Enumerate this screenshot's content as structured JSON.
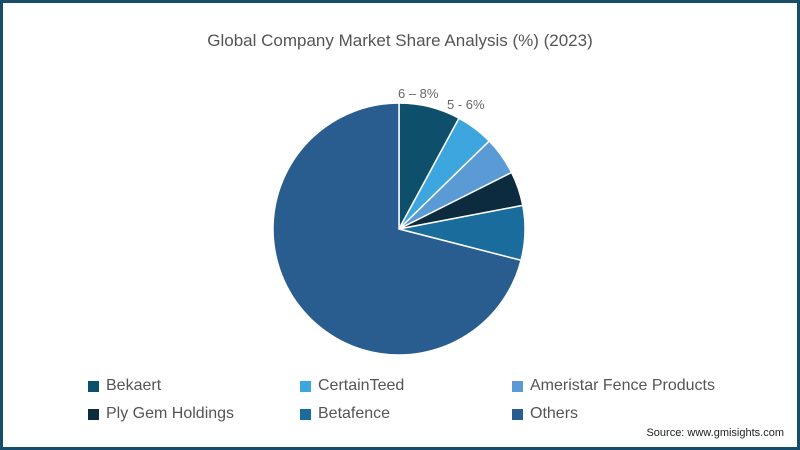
{
  "title": "Global Company Market Share Analysis (%) (2023)",
  "source": "Source: www.gmisights.com",
  "annotations": [
    "6 – 8%",
    "5 - 6%"
  ],
  "legend": [
    {
      "label": "Bekaert",
      "color": "#0e4f6b"
    },
    {
      "label": "CertainTeed",
      "color": "#3ea6de"
    },
    {
      "label": "Ameristar Fence Products",
      "color": "#5b9bd5"
    },
    {
      "label": "Ply Gem Holdings",
      "color": "#0d2b3e"
    },
    {
      "label": "Betafence",
      "color": "#1a6c9c"
    },
    {
      "label": "Others",
      "color": "#2a5d8f"
    }
  ],
  "chart_data": {
    "type": "pie",
    "title": "Global Company Market Share Analysis (%) (2023)",
    "categories": [
      "Bekaert",
      "CertainTeed",
      "Ameristar Fence Products",
      "Ply Gem Holdings",
      "Betafence",
      "Others"
    ],
    "values": [
      7.9,
      4.8,
      4.9,
      4.4,
      7.0,
      71.0
    ],
    "annotations": [
      {
        "text": "6 – 8%",
        "target": "Bekaert"
      },
      {
        "text": "5 - 6%",
        "target": "CertainTeed"
      }
    ],
    "legend_position": "bottom",
    "start_angle": "12 o'clock, clockwise"
  }
}
